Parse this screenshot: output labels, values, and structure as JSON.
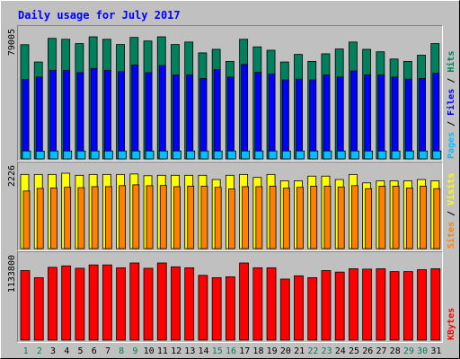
{
  "colors": {
    "background": "#C0C0C0",
    "title": "#0000FF",
    "hits": "#00805C",
    "files": "#0000FF",
    "pages": "#00C0FF",
    "visits": "#FFFF00",
    "sites": "#FF8000",
    "kbytes": "#FF0000",
    "weekend_label": "#00805C",
    "weekday_label": "#000000"
  },
  "chart_data": {
    "type": "bar",
    "title": "Daily usage for July 2017",
    "categories": [
      "1",
      "2",
      "3",
      "4",
      "5",
      "6",
      "7",
      "8",
      "9",
      "10",
      "11",
      "12",
      "13",
      "14",
      "15",
      "16",
      "17",
      "18",
      "19",
      "20",
      "21",
      "22",
      "23",
      "24",
      "25",
      "26",
      "27",
      "28",
      "29",
      "30",
      "31"
    ],
    "weekend_days": [
      "1",
      "2",
      "8",
      "9",
      "15",
      "16",
      "22",
      "23",
      "29",
      "30"
    ],
    "panels": [
      {
        "axis_label": "79005",
        "ymax": 79005,
        "legend": [
          {
            "name": "Pages",
            "color_key": "pages"
          },
          {
            "name": "Files",
            "color_key": "files"
          },
          {
            "name": "Hits",
            "color_key": "hits"
          }
        ],
        "series": [
          {
            "name": "Hits",
            "color_key": "hits",
            "values": [
              73900,
              62700,
              78000,
              77400,
              74600,
              79005,
              77400,
              74000,
              78600,
              76300,
              79005,
              74000,
              75600,
              68600,
              70900,
              63100,
              77400,
              72500,
              70300,
              62700,
              67600,
              63100,
              68000,
              71100,
              75600,
              70900,
              69300,
              64600,
              63100,
              67100,
              74600
            ]
          },
          {
            "name": "Files",
            "color_key": "files",
            "values": [
              51400,
              52900,
              57300,
              57300,
              55800,
              58500,
              57300,
              56400,
              60700,
              55800,
              60400,
              54300,
              54300,
              52000,
              57700,
              52900,
              61100,
              56000,
              54900,
              51100,
              51600,
              51100,
              54300,
              52900,
              56900,
              54300,
              54300,
              52900,
              51600,
              52000,
              55400
            ]
          },
          {
            "name": "Pages",
            "color_key": "pages",
            "values": [
              5100,
              4950,
              5100,
              5100,
              5100,
              5100,
              5100,
              5100,
              5100,
              5100,
              5100,
              5100,
              5100,
              5100,
              5100,
              5100,
              5100,
              5100,
              5100,
              5100,
              5100,
              5100,
              5100,
              5100,
              5100,
              5100,
              5100,
              5100,
              5100,
              5100,
              5100
            ]
          }
        ]
      },
      {
        "axis_label": "2226",
        "ymax": 2226,
        "legend": [
          {
            "name": "Sites",
            "color_key": "sites"
          },
          {
            "name": "Visits",
            "color_key": "visits"
          }
        ],
        "series": [
          {
            "name": "Visits",
            "color_key": "visits",
            "values": [
              2190,
              2190,
              2190,
              2226,
              2165,
              2190,
              2190,
              2190,
              2203,
              2152,
              2165,
              2165,
              2165,
              2165,
              2040,
              2165,
              2190,
              2101,
              2190,
              2002,
              2002,
              2140,
              2140,
              2040,
              2190,
              1940,
              2002,
              2002,
              2002,
              2040,
              2002
            ]
          },
          {
            "name": "Sites",
            "color_key": "sites",
            "values": [
              1700,
              1778,
              1791,
              1811,
              1800,
              1830,
              1830,
              1860,
              1884,
              1857,
              1864,
              1830,
              1845,
              1845,
              1810,
              1760,
              1830,
              1830,
              1845,
              1784,
              1810,
              1845,
              1845,
              1820,
              1860,
              1770,
              1845,
              1845,
              1790,
              1845,
              1770
            ]
          }
        ]
      },
      {
        "axis_label": "1133800",
        "ymax": 1133800,
        "legend": [
          {
            "name": "KBytes",
            "color_key": "kbytes"
          }
        ],
        "series": [
          {
            "name": "KBytes",
            "color_key": "kbytes",
            "values": [
              1022000,
              918000,
              1070000,
              1091000,
              1056000,
              1105000,
              1105000,
              1063000,
              1133800,
              1056000,
              1133800,
              1077000,
              1063000,
              952000,
              918000,
              931000,
              1133800,
              1063000,
              1063000,
              897000,
              945000,
              918000,
              1022000,
              1000000,
              1049000,
              1043000,
              1049000,
              1007000,
              1007000,
              1035000,
              1049000
            ]
          }
        ]
      }
    ]
  }
}
